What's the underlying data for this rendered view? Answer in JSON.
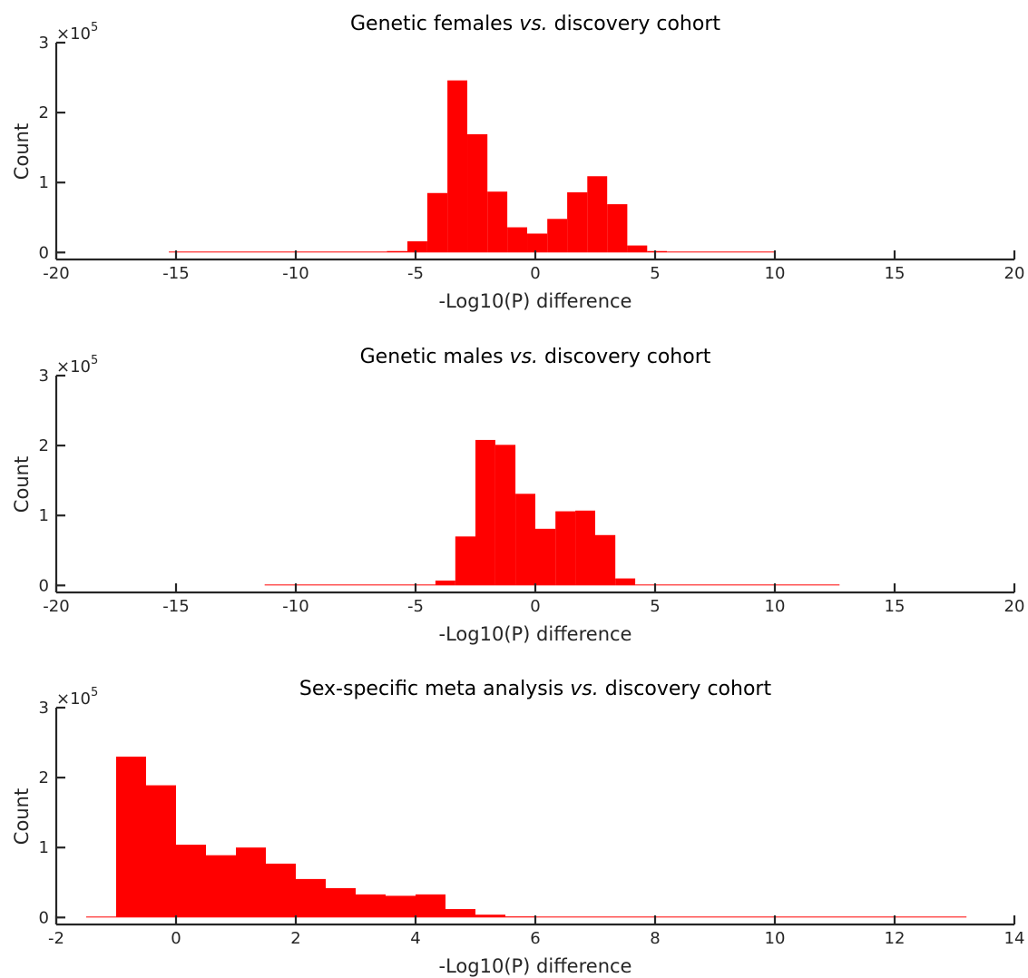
{
  "chart_data": [
    {
      "type": "bar",
      "title": "Genetic females",
      "title_italic": "vs.",
      "title_suffix": "discovery cohort",
      "xlabel": "-Log10(P) difference",
      "ylabel": "Count",
      "y_exponent_label": "×10",
      "y_exponent": "5",
      "xlim": [
        -20,
        20
      ],
      "ylim": [
        -10000,
        300000
      ],
      "xticks": [
        -20,
        -15,
        -10,
        -5,
        0,
        5,
        10,
        15,
        20
      ],
      "xtick_labels": [
        "-20",
        "-15",
        "-10",
        "-5",
        "0",
        "5",
        "10",
        "15",
        "20"
      ],
      "yticks": [
        0,
        100000,
        200000,
        300000
      ],
      "ytick_labels": [
        "0",
        "1",
        "2",
        "3"
      ],
      "color": "#ff0000",
      "bin_width": 0.834,
      "bins": [
        {
          "x0": -15.3,
          "x1": -6.2,
          "count": 800
        },
        {
          "x0": -6.2,
          "x1": -5.34,
          "count": 2000
        },
        {
          "x0": -5.34,
          "x1": -4.51,
          "count": 16000
        },
        {
          "x0": -4.51,
          "x1": -3.67,
          "count": 85000
        },
        {
          "x0": -3.67,
          "x1": -2.84,
          "count": 246000
        },
        {
          "x0": -2.84,
          "x1": -2.0,
          "count": 169000
        },
        {
          "x0": -2.0,
          "x1": -1.17,
          "count": 87000
        },
        {
          "x0": -1.17,
          "x1": -0.34,
          "count": 36000
        },
        {
          "x0": -0.34,
          "x1": 0.5,
          "count": 27000
        },
        {
          "x0": 0.5,
          "x1": 1.33,
          "count": 48000
        },
        {
          "x0": 1.33,
          "x1": 2.17,
          "count": 86000
        },
        {
          "x0": 2.17,
          "x1": 3.0,
          "count": 109000
        },
        {
          "x0": 3.0,
          "x1": 3.84,
          "count": 69000
        },
        {
          "x0": 3.84,
          "x1": 4.67,
          "count": 10000
        },
        {
          "x0": 4.67,
          "x1": 5.5,
          "count": 2000
        },
        {
          "x0": 5.5,
          "x1": 10.0,
          "count": 500
        }
      ]
    },
    {
      "type": "bar",
      "title": "Genetic males",
      "title_italic": "vs.",
      "title_suffix": "discovery cohort",
      "xlabel": "-Log10(P) difference",
      "ylabel": "Count",
      "y_exponent_label": "×10",
      "y_exponent": "5",
      "xlim": [
        -20,
        20
      ],
      "ylim": [
        -10000,
        300000
      ],
      "xticks": [
        -20,
        -15,
        -10,
        -5,
        0,
        5,
        10,
        15,
        20
      ],
      "xtick_labels": [
        "-20",
        "-15",
        "-10",
        "-5",
        "0",
        "5",
        "10",
        "15",
        "20"
      ],
      "yticks": [
        0,
        100000,
        200000,
        300000
      ],
      "ytick_labels": [
        "0",
        "1",
        "2",
        "3"
      ],
      "color": "#ff0000",
      "bin_width": 0.834,
      "bins": [
        {
          "x0": -11.3,
          "x1": -4.17,
          "count": 700
        },
        {
          "x0": -4.17,
          "x1": -3.34,
          "count": 7000
        },
        {
          "x0": -3.34,
          "x1": -2.5,
          "count": 70000
        },
        {
          "x0": -2.5,
          "x1": -1.67,
          "count": 208000
        },
        {
          "x0": -1.67,
          "x1": -0.83,
          "count": 201000
        },
        {
          "x0": -0.83,
          "x1": 0.0,
          "count": 131000
        },
        {
          "x0": 0.0,
          "x1": 0.84,
          "count": 81000
        },
        {
          "x0": 0.84,
          "x1": 1.67,
          "count": 106000
        },
        {
          "x0": 1.67,
          "x1": 2.5,
          "count": 107000
        },
        {
          "x0": 2.5,
          "x1": 3.34,
          "count": 72000
        },
        {
          "x0": 3.34,
          "x1": 4.17,
          "count": 10000
        },
        {
          "x0": 4.17,
          "x1": 12.7,
          "count": 500
        }
      ]
    },
    {
      "type": "bar",
      "title": "Sex-specific meta analysis",
      "title_italic": "vs.",
      "title_suffix": "discovery cohort",
      "xlabel": "-Log10(P) difference",
      "ylabel": "Count",
      "y_exponent_label": "×10",
      "y_exponent": "5",
      "xlim": [
        -2,
        14
      ],
      "ylim": [
        -10000,
        300000
      ],
      "xticks": [
        -2,
        0,
        2,
        4,
        6,
        8,
        10,
        12,
        14
      ],
      "xtick_labels": [
        "-2",
        "0",
        "2",
        "4",
        "6",
        "8",
        "10",
        "12",
        "14"
      ],
      "yticks": [
        0,
        100000,
        200000,
        300000
      ],
      "ytick_labels": [
        "0",
        "1",
        "2",
        "3"
      ],
      "color": "#ff0000",
      "bin_width": 0.5,
      "bins": [
        {
          "x0": -1.5,
          "x1": -1.0,
          "count": 500
        },
        {
          "x0": -1.0,
          "x1": -0.5,
          "count": 230000
        },
        {
          "x0": -0.5,
          "x1": 0.0,
          "count": 189000
        },
        {
          "x0": 0.0,
          "x1": 0.5,
          "count": 104000
        },
        {
          "x0": 0.5,
          "x1": 1.0,
          "count": 89000
        },
        {
          "x0": 1.0,
          "x1": 1.5,
          "count": 100000
        },
        {
          "x0": 1.5,
          "x1": 2.0,
          "count": 77000
        },
        {
          "x0": 2.0,
          "x1": 2.5,
          "count": 55000
        },
        {
          "x0": 2.5,
          "x1": 3.0,
          "count": 42000
        },
        {
          "x0": 3.0,
          "x1": 3.5,
          "count": 33000
        },
        {
          "x0": 3.5,
          "x1": 4.0,
          "count": 31000
        },
        {
          "x0": 4.0,
          "x1": 4.5,
          "count": 33000
        },
        {
          "x0": 4.5,
          "x1": 5.0,
          "count": 12000
        },
        {
          "x0": 5.0,
          "x1": 5.5,
          "count": 4000
        },
        {
          "x0": 5.5,
          "x1": 6.0,
          "count": 1500
        },
        {
          "x0": 6.0,
          "x1": 13.2,
          "count": 500
        }
      ]
    }
  ]
}
